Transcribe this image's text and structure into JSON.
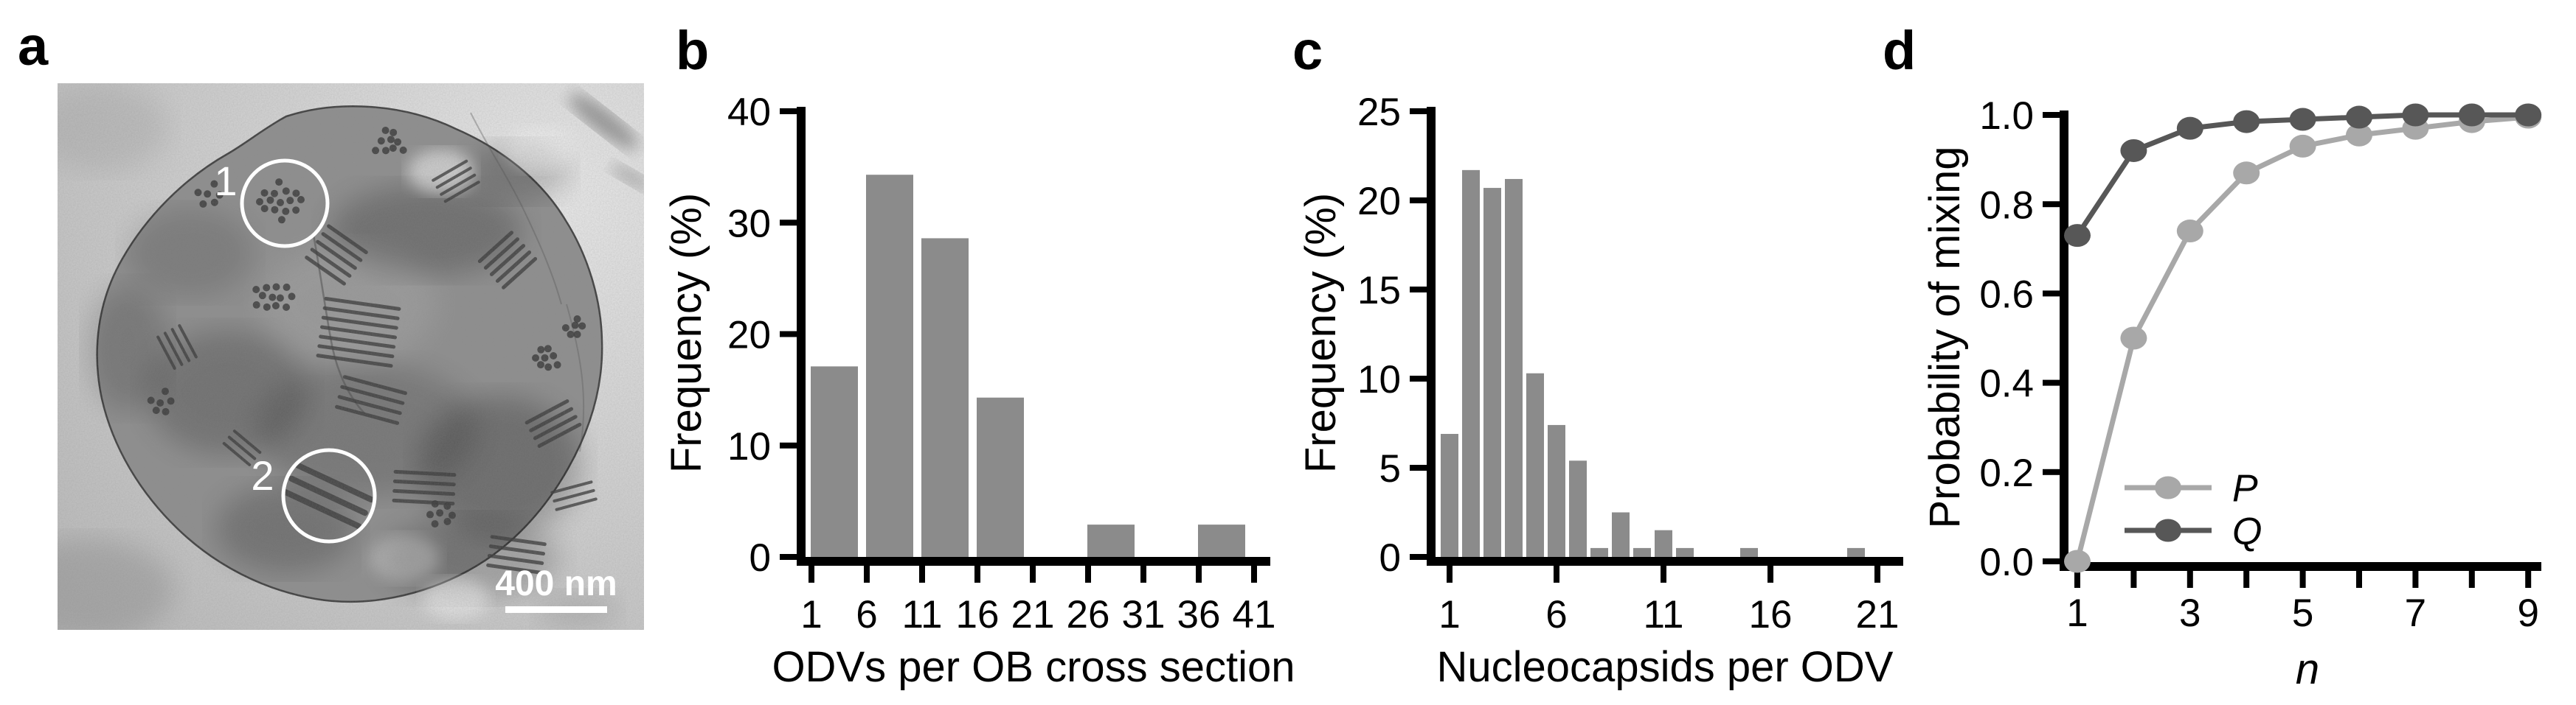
{
  "figure": {
    "panels": [
      {
        "id": "a",
        "label": "a"
      },
      {
        "id": "b",
        "label": "b"
      },
      {
        "id": "c",
        "label": "c"
      },
      {
        "id": "d",
        "label": "d"
      }
    ]
  },
  "micrograph": {
    "annotations": {
      "circle1_label": "1",
      "circle2_label": "2"
    },
    "scale_bar_text": "400 nm"
  },
  "chart_data": [
    {
      "id": "b",
      "type": "bar",
      "title": "",
      "xlabel": "ODVs per OB cross section",
      "ylabel": "Frequency (%)",
      "ylim": [
        0,
        40
      ],
      "grid": false,
      "bar_color": "#8b8b8b",
      "y_tick_labels": [
        "0",
        "10",
        "20",
        "30",
        "40"
      ],
      "y_tick_values": [
        0,
        10,
        20,
        30,
        40
      ],
      "x_tick_labels": [
        "1",
        "6",
        "11",
        "16",
        "21",
        "26",
        "31",
        "36",
        "41"
      ],
      "bin_edges": [
        1,
        6,
        11,
        16,
        21,
        26,
        31,
        36,
        41
      ],
      "values": [
        17.1,
        34.3,
        28.6,
        14.3,
        0,
        2.9,
        0,
        2.9
      ]
    },
    {
      "id": "c",
      "type": "bar",
      "title": "",
      "xlabel": "Nucleocapsids per ODV",
      "ylabel": "Frequency (%)",
      "ylim": [
        0,
        25
      ],
      "xlim": [
        1,
        21
      ],
      "grid": false,
      "bar_color": "#8b8b8b",
      "y_tick_labels": [
        "0",
        "5",
        "10",
        "15",
        "20",
        "25"
      ],
      "y_tick_values": [
        0,
        5,
        10,
        15,
        20,
        25
      ],
      "x_tick_labels": [
        "1",
        "6",
        "11",
        "16",
        "21"
      ],
      "x_tick_values": [
        1,
        6,
        11,
        16,
        21
      ],
      "x_values": [
        1,
        2,
        3,
        4,
        5,
        6,
        7,
        8,
        9,
        10,
        11,
        12,
        15,
        20
      ],
      "values": [
        6.9,
        21.7,
        20.7,
        21.2,
        10.3,
        7.4,
        5.4,
        0.5,
        2.5,
        0.5,
        1.5,
        0.5,
        0.5,
        0.5
      ]
    },
    {
      "id": "d",
      "type": "line",
      "title": "",
      "xlabel": "n",
      "ylabel": "Probability of mixing",
      "ylim": [
        0.0,
        1.0
      ],
      "xlim": [
        1,
        9
      ],
      "grid": false,
      "legend_position": "lower right",
      "y_tick_labels": [
        "0.0",
        "0.2",
        "0.4",
        "0.6",
        "0.8",
        "1.0"
      ],
      "y_tick_values": [
        0.0,
        0.2,
        0.4,
        0.6,
        0.8,
        1.0
      ],
      "x_tick_labels": [
        "1",
        "3",
        "5",
        "7",
        "9"
      ],
      "x_tick_values": [
        1,
        3,
        5,
        7,
        9
      ],
      "x": [
        1,
        2,
        3,
        4,
        5,
        6,
        7,
        8,
        9
      ],
      "series": [
        {
          "name": "P",
          "color": "#a8a8a8",
          "values": [
            0.0,
            0.5,
            0.74,
            0.87,
            0.93,
            0.955,
            0.97,
            0.985,
            0.995
          ]
        },
        {
          "name": "Q",
          "color": "#575757",
          "values": [
            0.73,
            0.92,
            0.97,
            0.985,
            0.99,
            0.995,
            1.0,
            1.0,
            1.0
          ]
        }
      ]
    }
  ]
}
